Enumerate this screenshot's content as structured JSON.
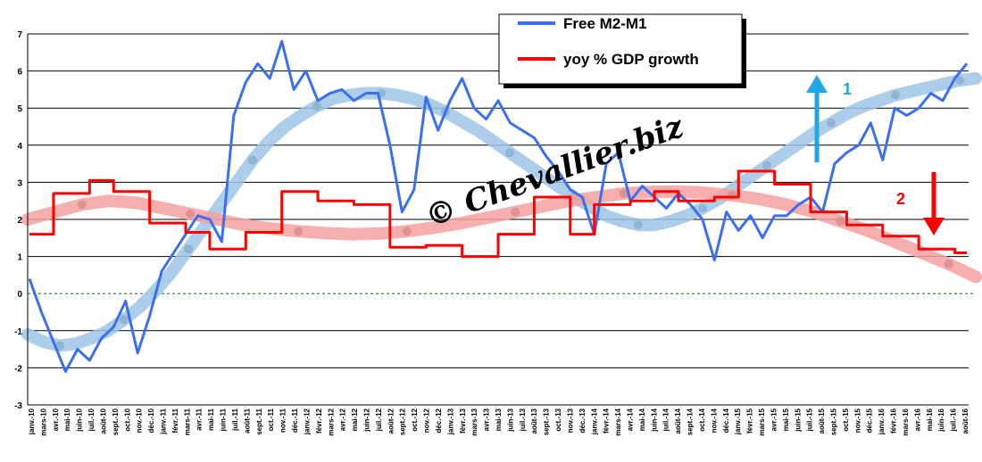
{
  "chart_data": {
    "type": "line",
    "ylim": [
      -3,
      7
    ],
    "yticks": [
      "-3",
      "-2",
      "-1",
      "0",
      "1",
      "2",
      "3",
      "4",
      "5",
      "6",
      "7"
    ],
    "grid": "horizontal",
    "legend_position": "top-center",
    "x_labels": [
      "janv.-10",
      "mars-10",
      "avr.-10",
      "mai-10",
      "juin-10",
      "juil.-10",
      "août-10",
      "sept.-10",
      "oct.-10",
      "nov.-10",
      "déc.-10",
      "janv.-11",
      "févr.-11",
      "mars-11",
      "avr.-11",
      "mai-11",
      "juin-11",
      "juil.-11",
      "août-11",
      "sept.-11",
      "oct.-11",
      "nov.-11",
      "déc.-11",
      "janv.-12",
      "févr.-12",
      "mars-12",
      "avr.-12",
      "mai-12",
      "juin-12",
      "juil.-12",
      "août-12",
      "sept.-12",
      "oct.-12",
      "nov.-12",
      "déc.-12",
      "janv.-13",
      "févr.-13",
      "mars-13",
      "avr.-13",
      "mai-13",
      "juin-13",
      "juil.-13",
      "août-13",
      "sept.-13",
      "oct.-13",
      "nov.-13",
      "déc.-13",
      "janv.-14",
      "févr.-14",
      "mars-14",
      "avr.-14",
      "mai-14",
      "juin-14",
      "juil.-14",
      "août-14",
      "sept.-14",
      "oct.-14",
      "nov.-14",
      "déc.-14",
      "janv.-15",
      "févr.-15",
      "mars-15",
      "avr.-15",
      "mai-15",
      "juin-15",
      "juil.-15",
      "août-15",
      "sept.-15",
      "oct.-15",
      "nov.-15",
      "déc.-15",
      "janv.-16",
      "févr.-16",
      "mars-16",
      "avr.-16",
      "mai-16",
      "juin-16",
      "juil.-16",
      "août-16"
    ],
    "series": [
      {
        "name": "Free M2-M1",
        "color": "#3a6ff0",
        "values": [
          0.4,
          -0.5,
          -1.3,
          -2.1,
          -1.5,
          -1.8,
          -1.2,
          -0.9,
          -0.2,
          -1.6,
          -0.6,
          0.6,
          1.1,
          1.6,
          2.1,
          2.0,
          1.4,
          4.8,
          5.7,
          6.2,
          5.8,
          6.8,
          5.5,
          6.0,
          5.2,
          5.4,
          5.5,
          5.2,
          5.4,
          5.4,
          4.0,
          2.2,
          2.8,
          5.3,
          4.4,
          5.2,
          5.8,
          5.0,
          4.7,
          5.2,
          4.6,
          4.4,
          4.2,
          3.7,
          3.3,
          2.8,
          2.6,
          1.6,
          3.5,
          3.8,
          2.5,
          2.9,
          2.6,
          2.3,
          2.7,
          2.4,
          2.0,
          0.9,
          2.2,
          1.7,
          2.1,
          1.5,
          2.1,
          2.1,
          2.4,
          2.6,
          2.2,
          3.5,
          3.8,
          4.0,
          4.6,
          3.6,
          5.0,
          4.8,
          5.0,
          5.4,
          5.2,
          5.8,
          6.2
        ]
      },
      {
        "name": "yoy % GDP growth",
        "color": "#ff0000",
        "values": [
          1.6,
          1.6,
          2.7,
          2.7,
          2.7,
          3.05,
          3.05,
          2.75,
          2.75,
          2.75,
          1.9,
          1.9,
          1.9,
          1.65,
          1.65,
          1.2,
          1.2,
          1.2,
          1.65,
          1.65,
          1.65,
          2.75,
          2.75,
          2.75,
          2.5,
          2.5,
          2.5,
          2.4,
          2.4,
          2.4,
          1.25,
          1.25,
          1.25,
          1.3,
          1.3,
          1.3,
          1.0,
          1.0,
          1.0,
          1.6,
          1.6,
          1.6,
          2.6,
          2.6,
          2.6,
          1.6,
          1.6,
          2.4,
          2.4,
          2.4,
          2.5,
          2.5,
          2.75,
          2.75,
          2.5,
          2.5,
          2.5,
          2.6,
          2.6,
          3.3,
          3.3,
          3.3,
          2.95,
          2.95,
          2.95,
          2.2,
          2.2,
          2.2,
          1.85,
          1.85,
          1.85,
          1.55,
          1.55,
          1.55,
          1.2,
          1.2,
          1.2,
          1.1,
          1.1
        ]
      }
    ],
    "trend_lines": [
      {
        "name": "trend-m2m1",
        "color": "#9ec6e8",
        "values": [
          -1.1,
          -1.3,
          -1.4,
          -1.35,
          -1.2,
          -1.0,
          -0.7,
          -0.35,
          0.1,
          0.6,
          1.2,
          1.8,
          2.4,
          3.0,
          3.6,
          4.1,
          4.5,
          4.8,
          5.05,
          5.25,
          5.35,
          5.4,
          5.4,
          5.35,
          5.25,
          5.1,
          4.9,
          4.65,
          4.4,
          4.1,
          3.8,
          3.5,
          3.2,
          2.9,
          2.6,
          2.35,
          2.1,
          1.95,
          1.85,
          1.85,
          1.95,
          2.1,
          2.3,
          2.55,
          2.85,
          3.15,
          3.45,
          3.75,
          4.05,
          4.35,
          4.6,
          4.85,
          5.05,
          5.2,
          5.35,
          5.45,
          5.55,
          5.65,
          5.75,
          5.8
        ]
      },
      {
        "name": "trend-gdp",
        "color": "#f4a0a0",
        "values": [
          2.0,
          2.2,
          2.4,
          2.5,
          2.45,
          2.3,
          2.15,
          2.0,
          1.85,
          1.75,
          1.68,
          1.63,
          1.6,
          1.62,
          1.68,
          1.78,
          1.9,
          2.05,
          2.2,
          2.35,
          2.5,
          2.6,
          2.7,
          2.74,
          2.75,
          2.72,
          2.65,
          2.55,
          2.4,
          2.2,
          1.95,
          1.7,
          1.4,
          1.1,
          0.8,
          0.45
        ]
      }
    ],
    "annotations": [
      {
        "label": "1",
        "color": "#1ea7e0"
      },
      {
        "label": "2",
        "color": "#ff0000"
      }
    ],
    "watermark": "© Chevallier.biz"
  }
}
